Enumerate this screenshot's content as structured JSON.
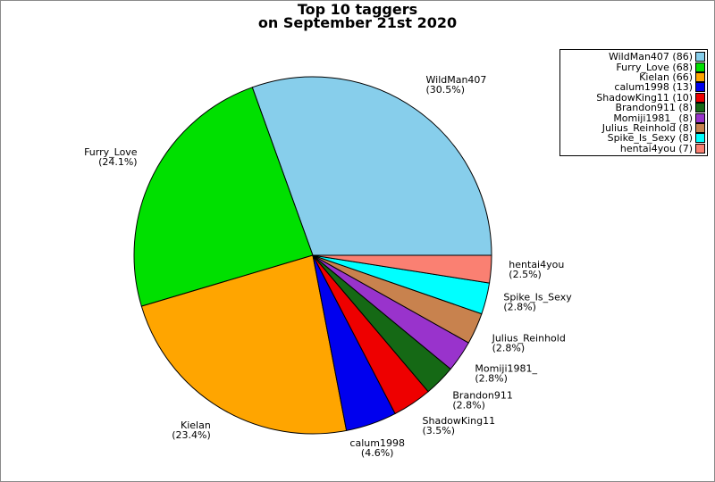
{
  "title": {
    "line1": "Top 10 taggers",
    "line2": "on September 21st 2020"
  },
  "chart_data": {
    "type": "pie",
    "title": "Top 10 taggers on September 21st 2020",
    "start_angle_deg": 0,
    "direction": "counterclockwise",
    "legend_position": "upper-right",
    "series": [
      {
        "label": "WildMan407",
        "count": 86,
        "pct_label": "30.5%",
        "color": "#87CEEB"
      },
      {
        "label": "Furry_Love",
        "count": 68,
        "pct_label": "24.1%",
        "color": "#00E000"
      },
      {
        "label": "Kielan",
        "count": 66,
        "pct_label": "23.4%",
        "color": "#FFA500"
      },
      {
        "label": "calum1998",
        "count": 13,
        "pct_label": "4.6%",
        "color": "#0000EE"
      },
      {
        "label": "ShadowKing11",
        "count": 10,
        "pct_label": "3.5%",
        "color": "#EE0000"
      },
      {
        "label": "Brandon911",
        "count": 8,
        "pct_label": "2.8%",
        "color": "#156915"
      },
      {
        "label": "Momiji1981_",
        "count": 8,
        "pct_label": "2.8%",
        "color": "#9933CC"
      },
      {
        "label": "Julius_Reinhold",
        "count": 8,
        "pct_label": "2.8%",
        "color": "#C8824E"
      },
      {
        "label": "Spike_Is_Sexy",
        "count": 8,
        "pct_label": "2.8%",
        "color": "#00FFFF"
      },
      {
        "label": "hentai4you",
        "count": 7,
        "pct_label": "2.5%",
        "color": "#FA8072"
      }
    ]
  },
  "legend": {
    "items": [
      "WildMan407 (86)",
      "Furry_Love (68)",
      "Kielan (66)",
      "calum1998 (13)",
      "ShadowKing11 (10)",
      "Brandon911 (8)",
      "Momiji1981_ (8)",
      "Julius_Reinhold (8)",
      "Spike_Is_Sexy (8)",
      "hentai4you (7)"
    ]
  }
}
